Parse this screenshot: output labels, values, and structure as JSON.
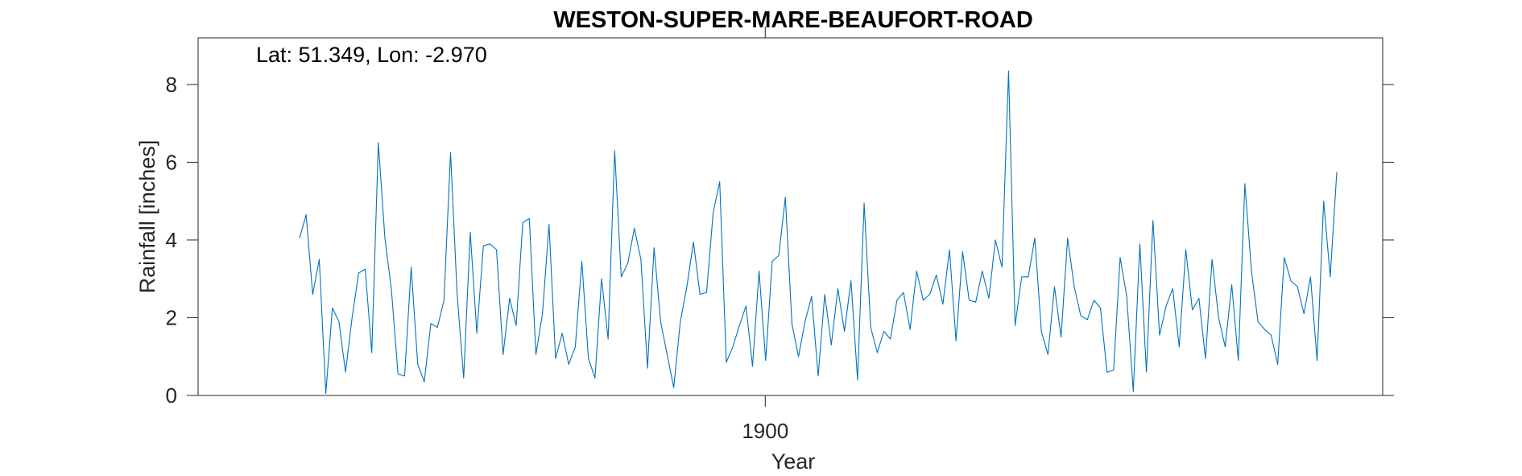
{
  "chart_data": {
    "type": "line",
    "title": "WESTON-SUPER-MARE-BEAUFORT-ROAD",
    "annotation": "Lat: 51.349, Lon: -2.970",
    "xlabel": "Year",
    "ylabel": "Rainfall [inches]",
    "xlim": [
      1879.7,
      1922.1
    ],
    "ylim": [
      0,
      9.2
    ],
    "xticks": [
      1900
    ],
    "xtick_labels": [
      "1900"
    ],
    "yticks": [
      0,
      2,
      4,
      6,
      8
    ],
    "ytick_labels": [
      "0",
      "2",
      "4",
      "6",
      "8"
    ],
    "grid": false,
    "legend": "none",
    "series": [
      {
        "color": "#0072BD",
        "values": [
          4.05,
          4.65,
          2.6,
          3.5,
          0.05,
          2.25,
          1.9,
          0.6,
          2.0,
          3.15,
          3.25,
          1.1,
          6.5,
          4.05,
          2.7,
          0.55,
          0.5,
          3.3,
          0.8,
          0.35,
          1.85,
          1.75,
          2.45,
          6.25,
          2.6,
          0.45,
          4.2,
          1.6,
          3.85,
          3.9,
          3.75,
          1.05,
          2.5,
          1.8,
          4.45,
          4.55,
          1.05,
          2.1,
          4.4,
          0.95,
          1.6,
          0.8,
          1.25,
          3.45,
          0.95,
          0.45,
          3.0,
          1.45,
          6.3,
          3.05,
          3.4,
          4.3,
          3.5,
          0.7,
          3.8,
          1.9,
          1.05,
          0.2,
          1.9,
          2.8,
          3.95,
          2.6,
          2.65,
          4.7,
          5.5,
          0.85,
          1.25,
          1.8,
          2.3,
          0.75,
          3.2,
          0.9,
          3.45,
          3.6,
          5.1,
          1.85,
          1.0,
          1.9,
          2.55,
          0.5,
          2.6,
          1.3,
          2.75,
          1.65,
          2.95,
          0.4,
          4.95,
          1.75,
          1.1,
          1.65,
          1.45,
          2.45,
          2.65,
          1.7,
          3.2,
          2.45,
          2.6,
          3.1,
          2.35,
          3.75,
          1.4,
          3.7,
          2.45,
          2.4,
          3.2,
          2.5,
          4.0,
          3.3,
          8.35,
          1.8,
          3.05,
          3.05,
          4.05,
          1.65,
          1.05,
          2.8,
          1.5,
          4.05,
          2.8,
          2.05,
          1.95,
          2.45,
          2.25,
          0.6,
          0.65,
          3.55,
          2.55,
          0.1,
          3.9,
          0.6,
          4.5,
          1.55,
          2.3,
          2.75,
          1.25,
          3.75,
          2.2,
          2.5,
          0.95,
          3.5,
          2.0,
          1.25,
          2.85,
          0.9,
          5.45,
          3.2,
          1.9,
          1.7,
          1.55,
          0.8,
          3.55,
          2.95,
          2.8,
          2.1,
          3.05,
          0.9,
          5.0,
          3.05,
          5.75
        ]
      }
    ]
  }
}
